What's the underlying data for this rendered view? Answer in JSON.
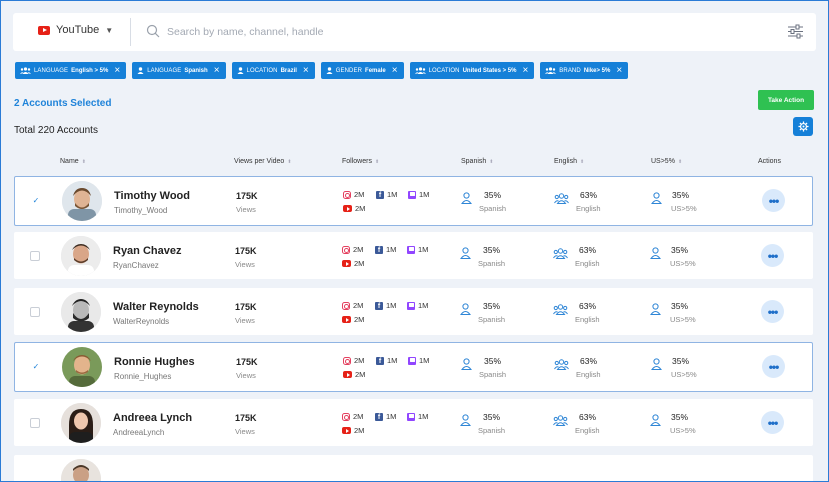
{
  "header": {
    "platform": "YouTube",
    "search_placeholder": "Search by name, channel, handle"
  },
  "filters": [
    {
      "key": "LANGUAGE",
      "value": "English > 5%",
      "icon": "users-icon"
    },
    {
      "key": "LANGUAGE",
      "value": "Spanish",
      "icon": "user-icon"
    },
    {
      "key": "LOCATION",
      "value": "Brazil",
      "icon": "user-icon"
    },
    {
      "key": "GENDER",
      "value": "Female",
      "icon": "user-icon"
    },
    {
      "key": "LOCATION",
      "value": "United States > 5%",
      "icon": "users-icon"
    },
    {
      "key": "BRAND",
      "value": "Nike> 5%",
      "icon": "users-icon"
    }
  ],
  "summary": {
    "selected": "2 Accounts Selected",
    "total": "Total 220 Accounts",
    "take_action": "Take Action"
  },
  "columns": [
    "Name",
    "Views per Video",
    "Followers",
    "Spanish",
    "English",
    "US>5%",
    "Actions"
  ],
  "rows": [
    {
      "name": "Timothy Wood",
      "handle": "Timothy_Wood",
      "views": "175K",
      "views_label": "Views",
      "ig": "2M",
      "fb": "1M",
      "tw": "1M",
      "yt": "2M",
      "spanish": "35%",
      "spanish_label": "Spanish",
      "english": "63%",
      "english_label": "English",
      "us": "35%",
      "us_label": "US>5%",
      "selected": true
    },
    {
      "name": "Ryan Chavez",
      "handle": "RyanChavez",
      "views": "175K",
      "views_label": "Views",
      "ig": "2M",
      "fb": "1M",
      "tw": "1M",
      "yt": "2M",
      "spanish": "35%",
      "spanish_label": "Spanish",
      "english": "63%",
      "english_label": "English",
      "us": "35%",
      "us_label": "US>5%",
      "selected": false
    },
    {
      "name": "Walter Reynolds",
      "handle": "WalterReynolds",
      "views": "175K",
      "views_label": "Views",
      "ig": "2M",
      "fb": "1M",
      "tw": "1M",
      "yt": "2M",
      "spanish": "35%",
      "spanish_label": "Spanish",
      "english": "63%",
      "english_label": "English",
      "us": "35%",
      "us_label": "US>5%",
      "selected": false
    },
    {
      "name": "Ronnie Hughes",
      "handle": "Ronnie_Hughes",
      "views": "175K",
      "views_label": "Views",
      "ig": "2M",
      "fb": "1M",
      "tw": "1M",
      "yt": "2M",
      "spanish": "35%",
      "spanish_label": "Spanish",
      "english": "63%",
      "english_label": "English",
      "us": "35%",
      "us_label": "US>5%",
      "selected": true
    },
    {
      "name": "Andreea Lynch",
      "handle": "AndreeaLynch",
      "views": "175K",
      "views_label": "Views",
      "ig": "2M",
      "fb": "1M",
      "tw": "1M",
      "yt": "2M",
      "spanish": "35%",
      "spanish_label": "Spanish",
      "english": "63%",
      "english_label": "English",
      "us": "35%",
      "us_label": "US>5%",
      "selected": false
    }
  ],
  "colors": {
    "primary": "#1580d8",
    "action": "#2fc152",
    "youtube": "#e62117"
  }
}
